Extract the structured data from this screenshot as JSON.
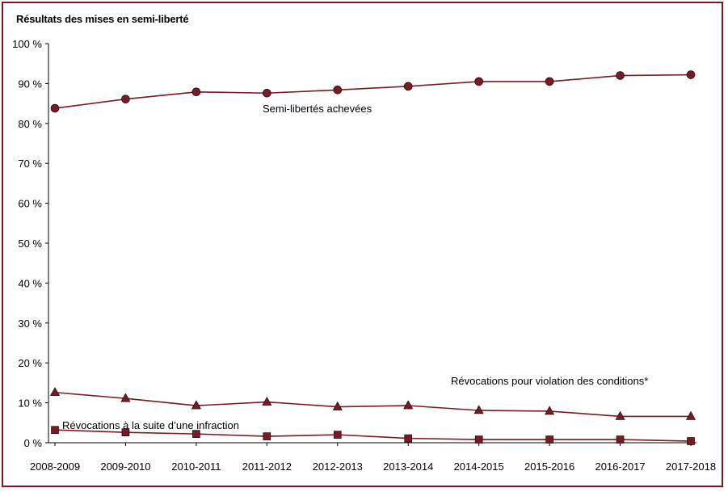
{
  "chart_data": {
    "type": "line",
    "title": "Résultats des mises en semi-liberté",
    "xlabel": "",
    "ylabel": "",
    "ylim": [
      0,
      100
    ],
    "y_ticks": [
      "0 %",
      "10 %",
      "20 %",
      "30 %",
      "40 %",
      "50 %",
      "60 %",
      "70 %",
      "80 %",
      "90 %",
      "100 %"
    ],
    "categories": [
      "2008-2009",
      "2009-2010",
      "2010-2011",
      "2011-2012",
      "2012-2013",
      "2013-2014",
      "2014-2015",
      "2015-2016",
      "2016-2017",
      "2017-2018"
    ],
    "grid": false,
    "series": [
      {
        "name": "Semi-libertés achevées",
        "marker": "circle",
        "values": [
          83.8,
          86.1,
          87.9,
          87.6,
          88.4,
          89.3,
          90.5,
          90.5,
          92.0,
          92.2
        ]
      },
      {
        "name": "Révocations pour violation des conditions*",
        "marker": "triangle",
        "values": [
          12.6,
          11.1,
          9.3,
          10.2,
          9.0,
          9.3,
          8.1,
          7.9,
          6.6,
          6.6
        ]
      },
      {
        "name": "Révocations à la suite d’une infraction",
        "marker": "square",
        "values": [
          3.2,
          2.6,
          2.2,
          1.6,
          2.0,
          1.1,
          0.8,
          0.8,
          0.8,
          0.4
        ]
      }
    ],
    "colors": {
      "series": "#7a1a22",
      "axis": "#000000",
      "frame": "#7a1a22"
    }
  }
}
